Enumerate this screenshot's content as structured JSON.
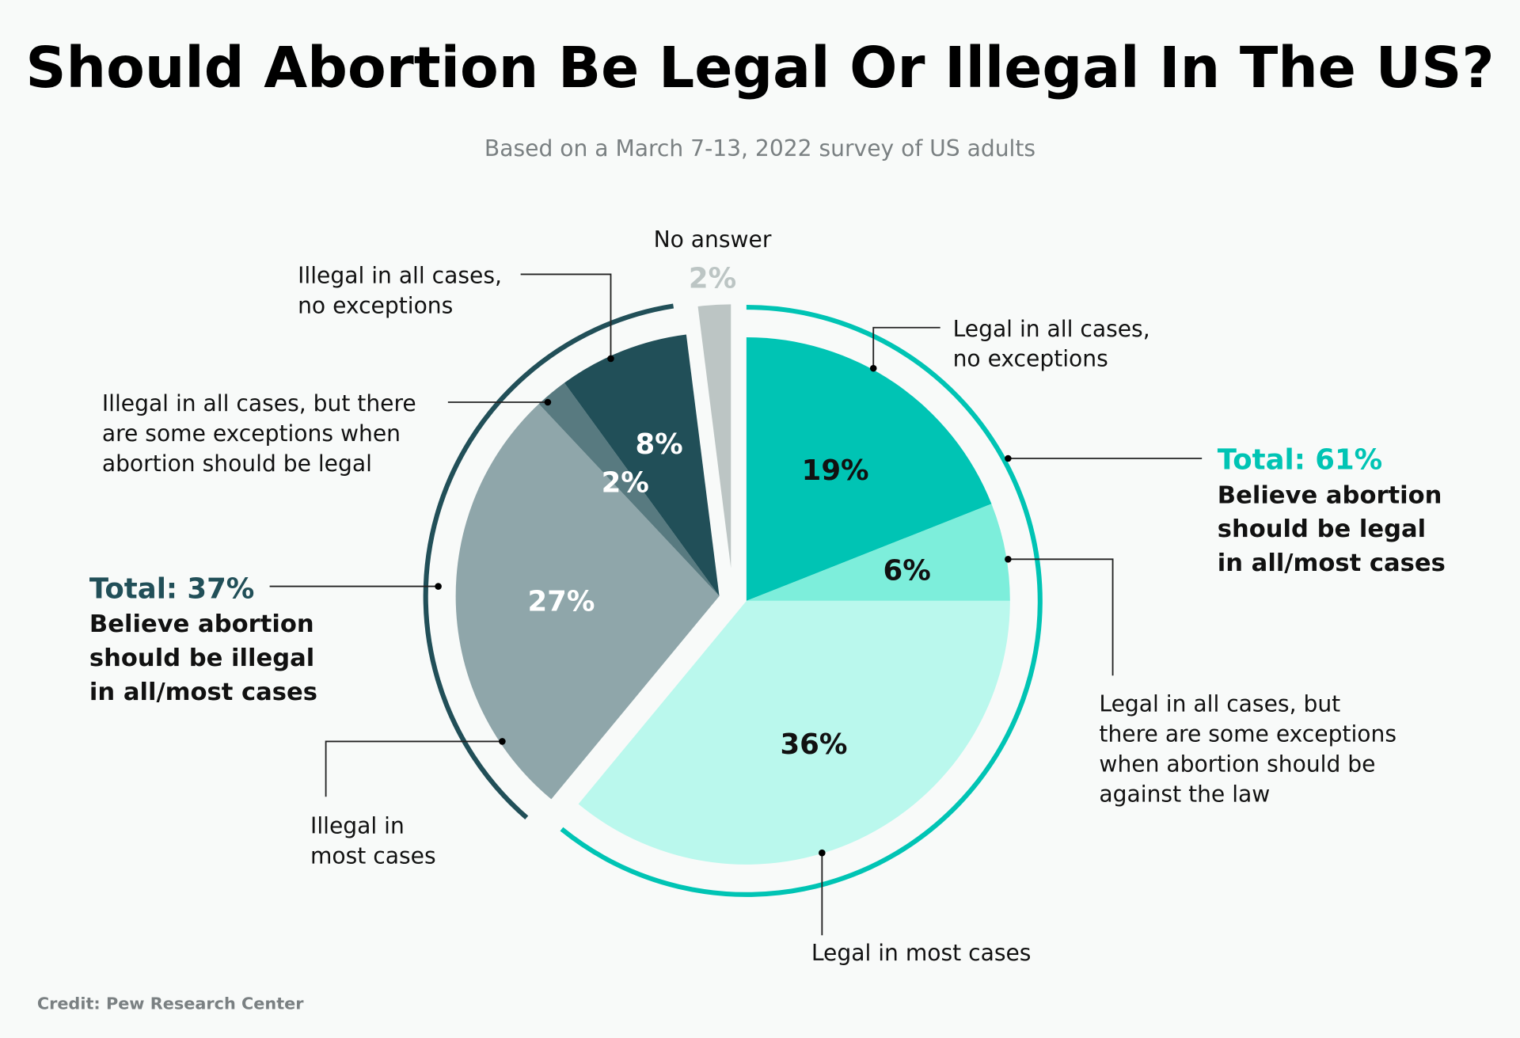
{
  "chart_data": {
    "type": "pie",
    "title": "Should Abortion Be Legal Or Illegal In The US?",
    "subtitle": "Based on a March 7-13, 2022 survey of US adults",
    "credit": "Credit: Pew Research Center",
    "slices": [
      {
        "label": "Legal in all cases, no exceptions",
        "value": 19,
        "display": "19%",
        "color": "#00c4b4",
        "text_color": "#111111",
        "group": "legal"
      },
      {
        "label": "Legal in all cases, but there are some exceptions when abortion should be against the law",
        "value": 6,
        "display": "6%",
        "color": "#7deedb",
        "text_color": "#111111",
        "group": "legal"
      },
      {
        "label": "Legal in most cases",
        "value": 36,
        "display": "36%",
        "color": "#baf8ed",
        "text_color": "#111111",
        "group": "legal"
      },
      {
        "label": "Illegal in most cases",
        "value": 27,
        "display": "27%",
        "color": "#8fa6aa",
        "text_color": "#ffffff",
        "group": "illegal"
      },
      {
        "label": "Illegal in all cases, but there are some exceptions when abortion should be legal",
        "value": 2,
        "display": "2%",
        "color": "#587a80",
        "text_color": "#ffffff",
        "group": "illegal"
      },
      {
        "label": "Illegal in all cases, no exceptions",
        "value": 8,
        "display": "8%",
        "color": "#214f58",
        "text_color": "#ffffff",
        "group": "illegal"
      },
      {
        "label": "No answer",
        "value": 2,
        "display": "2%",
        "color": "#bcc5c4",
        "text_color": "#bcc5c4",
        "group": "none"
      }
    ],
    "groups": {
      "legal": {
        "total": "Total: 61%",
        "desc": [
          "Believe abortion",
          "should be legal",
          "in all/most cases"
        ],
        "color": "#00c4b4"
      },
      "illegal": {
        "total": "Total: 37%",
        "desc": [
          "Believe abortion",
          "should be illegal",
          "in all/most cases"
        ],
        "color": "#214f58"
      }
    },
    "callouts": {
      "legal_all": [
        "Legal in all cases,",
        "no exceptions"
      ],
      "legal_exc": [
        "Legal in all cases, but",
        "there are some exceptions",
        "when abortion should be",
        "against the law"
      ],
      "legal_most": [
        "Legal in most cases"
      ],
      "illegal_most": [
        "Illegal in",
        "most cases"
      ],
      "illegal_exc": [
        "Illegal in all cases, but there",
        "are some exceptions when",
        "abortion should be legal"
      ],
      "illegal_all": [
        "Illegal in all cases,",
        "no exceptions"
      ],
      "no_answer": [
        "No answer"
      ]
    }
  }
}
